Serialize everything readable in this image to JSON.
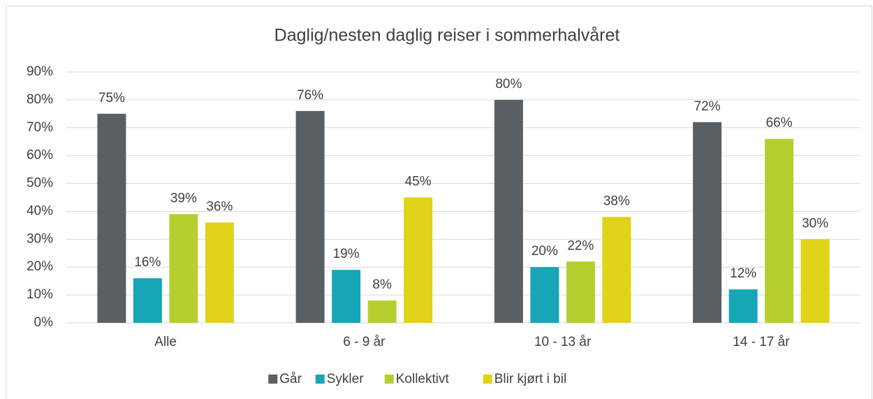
{
  "chart_data": {
    "type": "bar",
    "title": "Daglig/nesten daglig reiser i sommerhalvåret",
    "categories": [
      "Alle",
      "6 - 9 år",
      "10 - 13 år",
      "14 - 17 år"
    ],
    "series": [
      {
        "name": "Går",
        "color": "#595f63",
        "values": [
          75,
          76,
          80,
          72
        ],
        "value_labels": [
          "75%",
          "76%",
          "80%",
          "72%"
        ]
      },
      {
        "name": "Sykler",
        "color": "#17a6b6",
        "values": [
          16,
          19,
          20,
          12
        ],
        "value_labels": [
          "16%",
          "19%",
          "20%",
          "12%"
        ]
      },
      {
        "name": "Kollektivt",
        "color": "#b6cf2f",
        "values": [
          39,
          8,
          22,
          66
        ],
        "value_labels": [
          "39%",
          "8%",
          "22%",
          "66%"
        ]
      },
      {
        "name": "Blir kjørt i bil",
        "color": "#e0d31a",
        "values": [
          36,
          45,
          38,
          30
        ],
        "value_labels": [
          "36%",
          "45%",
          "38%",
          "30%"
        ]
      }
    ],
    "ylim": [
      0,
      90
    ],
    "yticks": [
      {
        "value": 0,
        "label": "0%"
      },
      {
        "value": 10,
        "label": "10%"
      },
      {
        "value": 20,
        "label": "20%"
      },
      {
        "value": 30,
        "label": "30%"
      },
      {
        "value": 40,
        "label": "40%"
      },
      {
        "value": 50,
        "label": "50%"
      },
      {
        "value": 60,
        "label": "60%"
      },
      {
        "value": 70,
        "label": "70%"
      },
      {
        "value": 80,
        "label": "80%"
      },
      {
        "value": 90,
        "label": "90%"
      }
    ],
    "grid": true,
    "legend": "bottom"
  }
}
